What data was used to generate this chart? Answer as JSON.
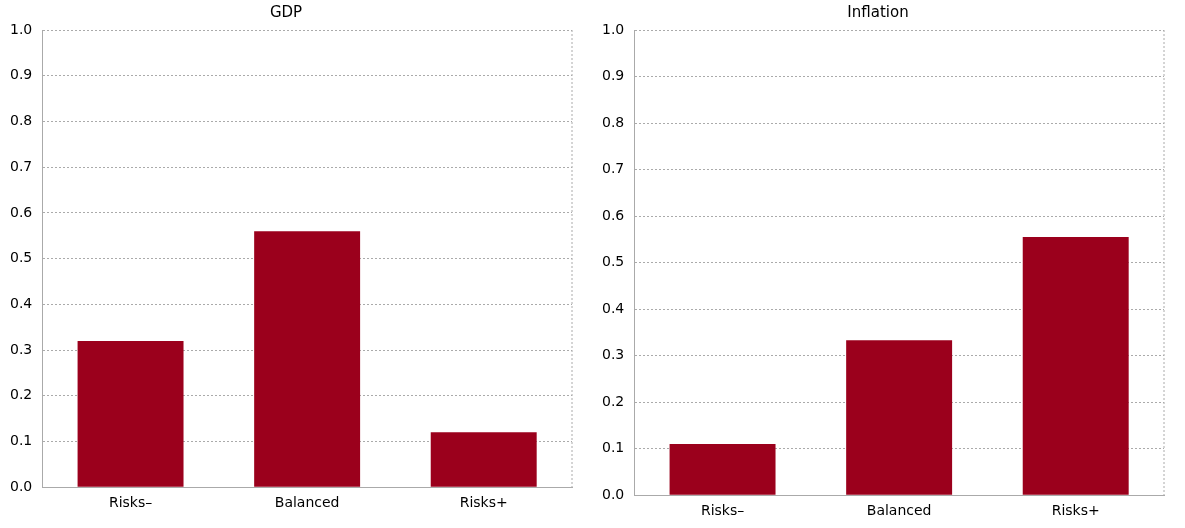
{
  "chart_data": [
    {
      "type": "bar",
      "title": "GDP",
      "categories": [
        "Risks–",
        "Balanced",
        "Risks+"
      ],
      "values": [
        0.32,
        0.56,
        0.12
      ],
      "color": "#9b001c",
      "ylim": [
        0,
        1
      ],
      "yticks": [
        {
          "value": 0,
          "label": "0.0"
        },
        {
          "value": 0.1,
          "label": "0.1"
        },
        {
          "value": 0.2,
          "label": "0.2"
        },
        {
          "value": 0.3,
          "label": "0.3"
        },
        {
          "value": 0.4,
          "label": "0.4"
        },
        {
          "value": 0.5,
          "label": "0.5"
        },
        {
          "value": 0.6,
          "label": "0.6"
        },
        {
          "value": 0.7,
          "label": "0.7"
        },
        {
          "value": 0.8,
          "label": "0.8"
        },
        {
          "value": 0.9,
          "label": "0.9"
        },
        {
          "value": 1,
          "label": "1.0"
        }
      ],
      "grid": "y"
    },
    {
      "type": "bar",
      "title": "Inflation",
      "categories": [
        "Risks–",
        "Balanced",
        "Risks+"
      ],
      "values": [
        0.11,
        0.333,
        0.555
      ],
      "color": "#9b001c",
      "ylim": [
        0,
        1
      ],
      "yticks": [
        {
          "value": 0,
          "label": "0.0"
        },
        {
          "value": 0.1,
          "label": "0.1"
        },
        {
          "value": 0.2,
          "label": "0.2"
        },
        {
          "value": 0.3,
          "label": "0.3"
        },
        {
          "value": 0.4,
          "label": "0.4"
        },
        {
          "value": 0.5,
          "label": "0.5"
        },
        {
          "value": 0.6,
          "label": "0.6"
        },
        {
          "value": 0.7,
          "label": "0.7"
        },
        {
          "value": 0.8,
          "label": "0.8"
        },
        {
          "value": 0.9,
          "label": "0.9"
        },
        {
          "value": 1,
          "label": "1.0"
        }
      ],
      "grid": "y"
    }
  ]
}
